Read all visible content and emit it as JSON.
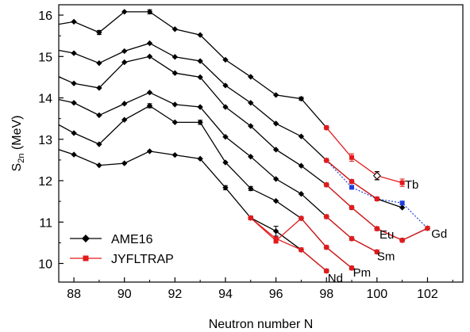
{
  "chart_data": {
    "type": "line",
    "xlabel": "Neutron number N",
    "ylabel_main": "S",
    "ylabel_sub": "2n",
    "ylabel_unit": " (MeV)",
    "xlim": [
      87.4,
      103.4
    ],
    "ylim": [
      9.55,
      16.25
    ],
    "xticks": [
      88,
      90,
      92,
      94,
      96,
      98,
      100,
      102
    ],
    "yticks": [
      10,
      11,
      12,
      13,
      14,
      15,
      16
    ],
    "grid": false,
    "legend_position": "bottom-left",
    "legend": [
      {
        "label": "AME16",
        "color": "#000000",
        "marker": "diamond"
      },
      {
        "label": "JYFLTRAP",
        "color": "#e31a1c",
        "marker": "square"
      }
    ],
    "ame16_series": [
      {
        "x": [
          87.4,
          88,
          89,
          90,
          91,
          92,
          93,
          94,
          95,
          96,
          97,
          98
        ],
        "y": [
          15.78,
          15.84,
          15.58,
          16.08,
          16.08,
          15.66,
          15.52,
          14.92,
          14.51,
          14.07,
          13.98,
          13.28
        ],
        "err": [
          0,
          0,
          0.05,
          0,
          0.05,
          0,
          0,
          0,
          0,
          0,
          0.04,
          0
        ]
      },
      {
        "x": [
          87.4,
          88,
          89,
          90,
          91,
          92,
          93,
          94,
          95,
          96,
          97,
          98,
          99,
          100,
          101
        ],
        "y": [
          15.15,
          15.08,
          14.84,
          15.13,
          15.32,
          14.99,
          14.89,
          14.3,
          13.88,
          13.38,
          13.07,
          12.49,
          11.98,
          11.56,
          11.35
        ],
        "err": [
          0,
          0,
          0,
          0,
          0,
          0,
          0,
          0,
          0,
          0,
          0,
          0,
          0,
          0,
          0
        ]
      },
      {
        "x": [
          87.4,
          88,
          89,
          90,
          91,
          92,
          93,
          94,
          95,
          96,
          97,
          98,
          99,
          100,
          101,
          102
        ],
        "y": [
          14.51,
          14.35,
          14.24,
          14.86,
          15.0,
          14.6,
          14.5,
          13.78,
          13.32,
          12.75,
          12.36,
          11.9,
          11.35,
          10.84,
          10.56,
          10.85
        ],
        "err": [
          0,
          0,
          0,
          0,
          0,
          0,
          0,
          0,
          0,
          0,
          0,
          0,
          0,
          0.04,
          0,
          0
        ]
      },
      {
        "x": [
          87.4,
          88,
          89,
          90,
          91,
          92,
          93,
          94,
          95,
          96,
          97,
          98,
          99,
          100
        ],
        "y": [
          13.96,
          13.88,
          13.58,
          13.86,
          14.13,
          13.84,
          13.78,
          13.06,
          12.58,
          12.04,
          11.68,
          11.13,
          10.6,
          10.28
        ],
        "err": [
          0,
          0,
          0,
          0,
          0,
          0,
          0,
          0,
          0,
          0,
          0,
          0,
          0,
          0
        ]
      },
      {
        "x": [
          87.4,
          88,
          89,
          90,
          91,
          92,
          93,
          94,
          95,
          96,
          97,
          98,
          99
        ],
        "y": [
          13.35,
          13.15,
          12.88,
          13.47,
          13.81,
          13.41,
          13.41,
          12.44,
          11.81,
          11.51,
          11.09,
          10.39,
          9.89
        ],
        "err": [
          0,
          0,
          0,
          0,
          0.05,
          0,
          0.05,
          0,
          0.05,
          0,
          0,
          0,
          0
        ]
      },
      {
        "x": [
          87.4,
          88,
          89,
          90,
          91,
          92,
          93,
          94,
          95,
          96,
          97,
          98
        ],
        "y": [
          12.75,
          12.63,
          12.37,
          12.42,
          12.71,
          12.62,
          12.53,
          11.83,
          11.1,
          10.78,
          10.33,
          9.82
        ],
        "err": [
          0,
          0,
          0,
          0,
          0,
          0,
          0,
          0.05,
          0,
          0.12,
          0,
          0
        ]
      }
    ],
    "jyfltrap_series": [
      {
        "x": [
          98,
          99,
          100,
          101
        ],
        "y": [
          13.28,
          12.56,
          12.12,
          11.95
        ],
        "err": [
          0,
          0.09,
          0.09,
          0.09
        ]
      },
      {
        "x": [
          98,
          99,
          100
        ],
        "y": [
          12.49,
          11.98,
          11.56
        ],
        "err": [
          0,
          0,
          0
        ]
      },
      {
        "x": [
          98,
          99,
          100,
          101,
          102
        ],
        "y": [
          11.9,
          11.35,
          10.84,
          10.56,
          10.85
        ],
        "err": [
          0,
          0,
          0.04,
          0,
          0
        ]
      },
      {
        "x": [
          98,
          99,
          100
        ],
        "y": [
          11.13,
          10.6,
          10.28
        ],
        "err": [
          0,
          0,
          0
        ]
      },
      {
        "x": [
          95,
          96,
          97,
          98,
          99
        ],
        "y": [
          11.1,
          10.55,
          11.09,
          10.39,
          9.89
        ],
        "err": [
          0,
          0.06,
          0,
          0,
          0
        ]
      },
      {
        "x": [
          95,
          96,
          97,
          98
        ],
        "y": [
          11.1,
          10.6,
          10.33,
          9.82
        ],
        "err": [
          0,
          0,
          0,
          0
        ]
      }
    ],
    "dotted_blue_line": {
      "x": [
        98,
        99,
        100,
        101,
        102
      ],
      "y": [
        12.49,
        11.84,
        11.56,
        11.46,
        10.85
      ]
    },
    "blue_points": {
      "x": [
        99,
        101
      ],
      "y": [
        11.84,
        11.46
      ]
    },
    "open_point": {
      "x": 100,
      "y": 12.12,
      "err": 0.1
    },
    "element_labels": [
      {
        "text": "Tb",
        "x": 101.1,
        "y": 11.9
      },
      {
        "text": "Gd",
        "x": 102.15,
        "y": 10.72
      },
      {
        "text": "Eu",
        "x": 100.1,
        "y": 10.7
      },
      {
        "text": "Sm",
        "x": 100.0,
        "y": 10.17
      },
      {
        "text": "Pm",
        "x": 99.05,
        "y": 9.78
      },
      {
        "text": "Nd",
        "x": 98.05,
        "y": 9.65
      }
    ]
  },
  "colors": {
    "ame": "#000000",
    "jyfl": "#e31a1c",
    "blue": "#1f3fdc"
  }
}
